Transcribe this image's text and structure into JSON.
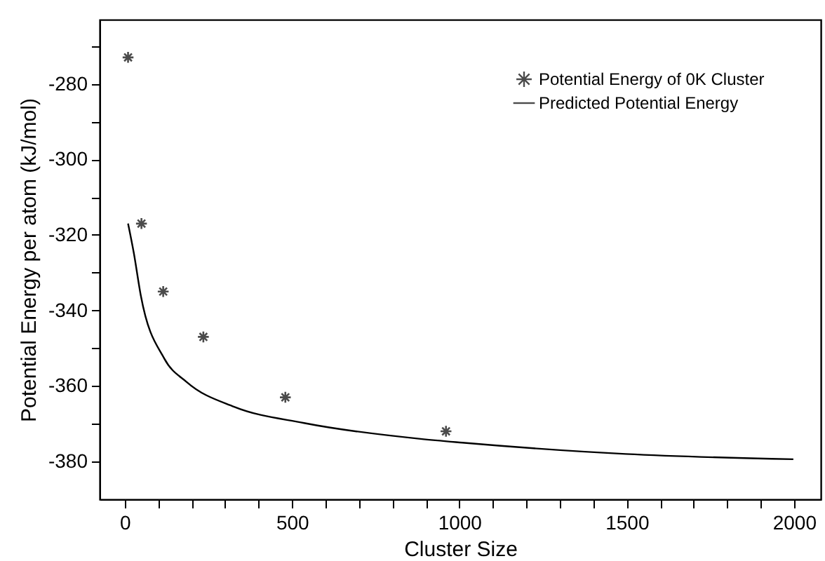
{
  "chart_data": {
    "type": "scatter",
    "xlabel": "Cluster Size",
    "ylabel": "Potential Energy per atom (kJ/mol)",
    "xlim": [
      -75,
      2080
    ],
    "ylim": [
      -390,
      -263
    ],
    "xticks": [
      0,
      {
        "value": 100,
        "label": null
      },
      {
        "value": 200,
        "label": null
      },
      {
        "value": 300,
        "label": null
      },
      {
        "value": 400,
        "label": null
      },
      500,
      {
        "value": 600,
        "label": null
      },
      {
        "value": 700,
        "label": null
      },
      {
        "value": 800,
        "label": null
      },
      {
        "value": 900,
        "label": null
      },
      1000,
      {
        "value": 1100,
        "label": null
      },
      {
        "value": 1200,
        "label": null
      },
      {
        "value": 1300,
        "label": null
      },
      {
        "value": 1400,
        "label": null
      },
      1500,
      {
        "value": 1600,
        "label": null
      },
      {
        "value": 1700,
        "label": null
      },
      {
        "value": 1800,
        "label": null
      },
      {
        "value": 1900,
        "label": null
      },
      2000
    ],
    "yticks": [
      -380,
      {
        "value": -370,
        "label": null
      },
      -360,
      {
        "value": -350,
        "label": null
      },
      -340,
      {
        "value": -330,
        "label": null
      },
      -320,
      {
        "value": -310,
        "label": null
      },
      -300,
      {
        "value": -290,
        "label": null
      },
      -280,
      {
        "value": -270,
        "label": null
      }
    ],
    "grid": false,
    "legend": "top right",
    "series": [
      {
        "name": "Potential Energy of 0K  Cluster",
        "marker": "cross",
        "color": "#000000",
        "x": [
          10,
          50,
          115,
          235,
          480,
          960
        ],
        "values": [
          -273,
          -317,
          -335,
          -347,
          -363,
          -372
        ]
      },
      {
        "name": "Predicted Potential Energy",
        "type": "line",
        "marker": "none",
        "color": "#000000",
        "x": [
          10,
          27,
          48,
          118,
          186,
          327,
          536,
          884,
          1009,
          1497,
          1998
        ],
        "values": [
          -317,
          -324.7,
          -336,
          -352.7,
          -359,
          -365.5,
          -369.8,
          -374,
          -375,
          -378,
          -379.4
        ]
      }
    ]
  }
}
